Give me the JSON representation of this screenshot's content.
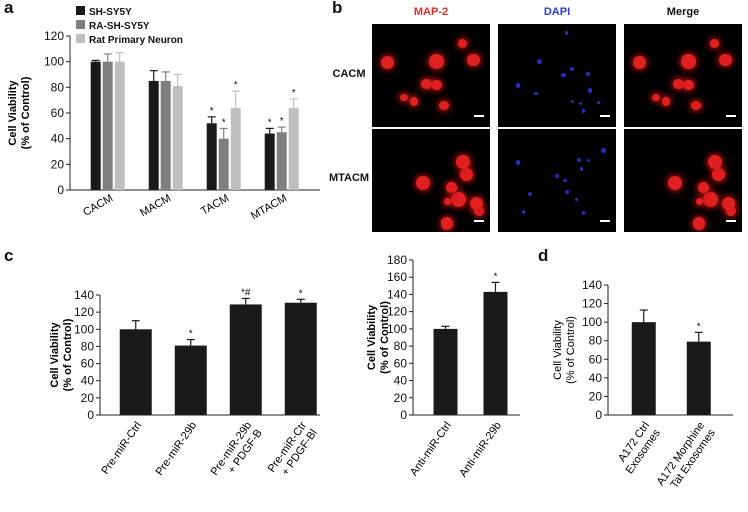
{
  "figure": {
    "panel_a": "a",
    "panel_b": "b",
    "panel_c": "c",
    "panel_d": "d"
  },
  "micrograph": {
    "columns": [
      {
        "label": "MAP-2",
        "color": "#e8282b"
      },
      {
        "label": "DAPI",
        "color": "#2b3bd6"
      },
      {
        "label": "Merge",
        "color": "#111111"
      }
    ],
    "rows": [
      "CACM",
      "MTACM"
    ]
  },
  "colors": {
    "black_bar": "#1a1a1a",
    "gray_bar": "#7f7f7f",
    "light_bar": "#bfbfbf",
    "red_stain": "#e02020",
    "blue_stain": "#2030c0"
  },
  "chart_data": [
    {
      "id": "a",
      "type": "bar",
      "ylabel": "Cell Viability\n(% of Control)",
      "ylim": [
        0,
        120
      ],
      "yticks": [
        0,
        20,
        40,
        60,
        80,
        100,
        120
      ],
      "categories": [
        "CACM",
        "MACM",
        "TACM",
        "MTACM"
      ],
      "legend": "top-left",
      "series": [
        {
          "name": "SH-SY5Y",
          "color": "#1a1a1a",
          "values": [
            100,
            85,
            52,
            44
          ],
          "errors": [
            1,
            8,
            5,
            4
          ],
          "stars": [
            "",
            "",
            "*",
            "*"
          ]
        },
        {
          "name": "RA-SH-SY5Y",
          "color": "#7f7f7f",
          "values": [
            100,
            85,
            40,
            45
          ],
          "errors": [
            6,
            7,
            8,
            4
          ],
          "stars": [
            "",
            "",
            "*",
            "*"
          ]
        },
        {
          "name": "Rat Primary Neuron",
          "color": "#bfbfbf",
          "values": [
            100,
            81,
            64,
            64
          ],
          "errors": [
            7,
            9,
            13,
            7
          ],
          "stars": [
            "",
            "",
            "*",
            "*"
          ]
        }
      ]
    },
    {
      "id": "c1",
      "type": "bar",
      "ylabel": "Cell Viability\n(% of Control)",
      "ylim": [
        0,
        140
      ],
      "yticks": [
        0,
        20,
        40,
        60,
        80,
        100,
        120,
        140
      ],
      "categories": [
        "Pre-miR-Ctrl",
        "Pre-miR-29b",
        "Pre-miR-29b\n+ PDGF-B",
        "Pre-miR-Ctr\n+ PDGF-Bl"
      ],
      "series": [
        {
          "color": "#1a1a1a",
          "values": [
            100,
            81,
            129,
            131
          ],
          "errors": [
            10,
            7,
            7,
            4
          ],
          "stars": [
            "",
            "*",
            "*#",
            "*"
          ]
        }
      ]
    },
    {
      "id": "c2",
      "type": "bar",
      "ylabel": "Cell Viability\n(% of Control)",
      "ylim": [
        0,
        180
      ],
      "yticks": [
        0,
        20,
        40,
        60,
        80,
        100,
        120,
        140,
        160,
        180
      ],
      "categories": [
        "Anti-miR-Ctrl",
        "Anti-miR-29b"
      ],
      "series": [
        {
          "color": "#1a1a1a",
          "values": [
            100,
            143
          ],
          "errors": [
            3,
            11
          ],
          "stars": [
            "",
            "*"
          ]
        }
      ]
    },
    {
      "id": "d",
      "type": "bar",
      "ylabel": "Cell Viability\n(% of Control)",
      "ylim": [
        0,
        140
      ],
      "yticks": [
        0,
        20,
        40,
        60,
        80,
        100,
        120,
        140
      ],
      "categories": [
        "A172 Ctrl\nExosomes",
        "A172 Morphine\nTat Exosomes"
      ],
      "series": [
        {
          "color": "#1a1a1a",
          "values": [
            100,
            79
          ],
          "errors": [
            13,
            10
          ],
          "stars": [
            "",
            "*"
          ]
        }
      ]
    }
  ]
}
